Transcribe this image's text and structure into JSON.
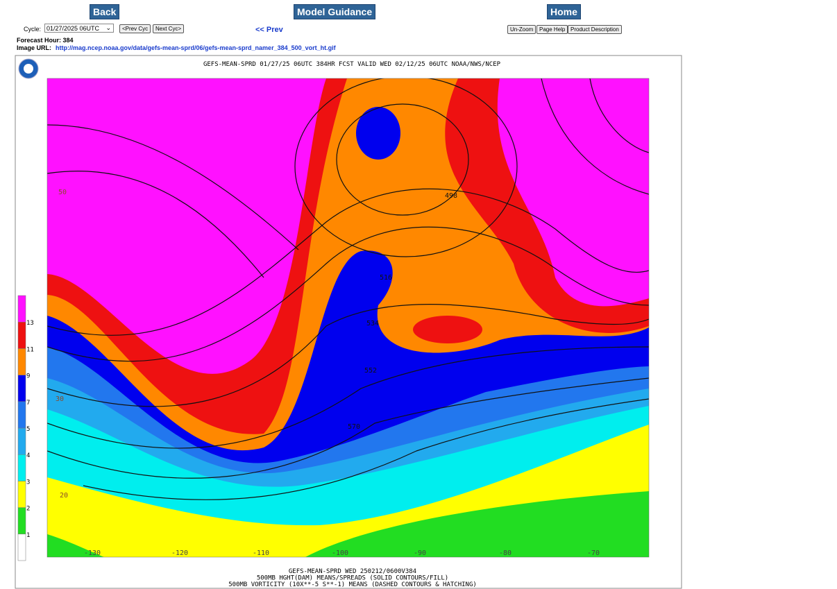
{
  "nav": {
    "back": "Back",
    "model_guidance": "Model Guidance",
    "home": "Home"
  },
  "controls": {
    "cycle_label": "Cycle:",
    "cycle_value": "01/27/2025 06UTC",
    "prev_cyc": "<Prev Cyc",
    "next_cyc": "Next Cyc>",
    "prev": "<< Prev",
    "unzoom": "Un-Zoom",
    "page_help": "Page Help",
    "product_description": "Product Description"
  },
  "info": {
    "forecast_hour": "Forecast Hour: 384",
    "image_url_label": "Image URL:",
    "image_url": "http://mag.ncep.noaa.gov/data/gefs-mean-sprd/06/gefs-mean-sprd_namer_384_500_vort_ht.gif"
  },
  "map": {
    "title": "GEFS-MEAN-SPRD 01/27/25 06UTC 384HR FCST VALID WED 02/12/25 06UTC NOAA/NWS/NCEP",
    "legend": {
      "labels": [
        "1",
        "2",
        "3",
        "4",
        "5",
        "7",
        "9",
        "11",
        "13"
      ],
      "colors": [
        "#ffffff",
        "#22dd22",
        "#ffff00",
        "#00eeee",
        "#22aaee",
        "#2277ee",
        "#0000ee",
        "#ff8800",
        "#ee1111",
        "#ff11ff"
      ]
    },
    "longitude_labels": [
      "-130",
      "-120",
      "-110",
      "-100",
      "-90",
      "-80",
      "-70"
    ],
    "contour_labels": [
      "50",
      "30",
      "20",
      "498",
      "516",
      "534",
      "552",
      "570"
    ],
    "footer": [
      "GEFS-MEAN-SPRD WED 250212/0600V384",
      "500MB HGHT(DAM) MEANS/SPREADS (SOLID CONTOURS/FILL)",
      "500MB VORTICITY (10X**-5 S**-1) MEANS (DASHED CONTOURS & HATCHING)"
    ]
  }
}
